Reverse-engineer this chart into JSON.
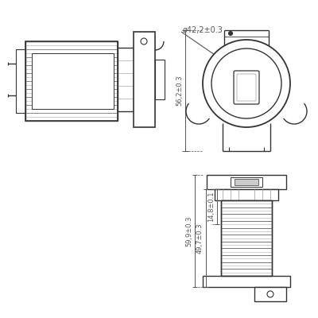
{
  "bg_color": "#ffffff",
  "lc": "#333333",
  "dimc": "#555555",
  "gray": "#aaaaaa",
  "lgray": "#cccccc",
  "annotations": {
    "diameter": "ø42,2±0.3",
    "height_top": "56,2±0.3",
    "dim1": "59,9±0.3",
    "dim2": "49,7±0.3",
    "dim3": "14,8±0.1"
  },
  "fig_width": 4.0,
  "fig_height": 4.0,
  "dpi": 100
}
